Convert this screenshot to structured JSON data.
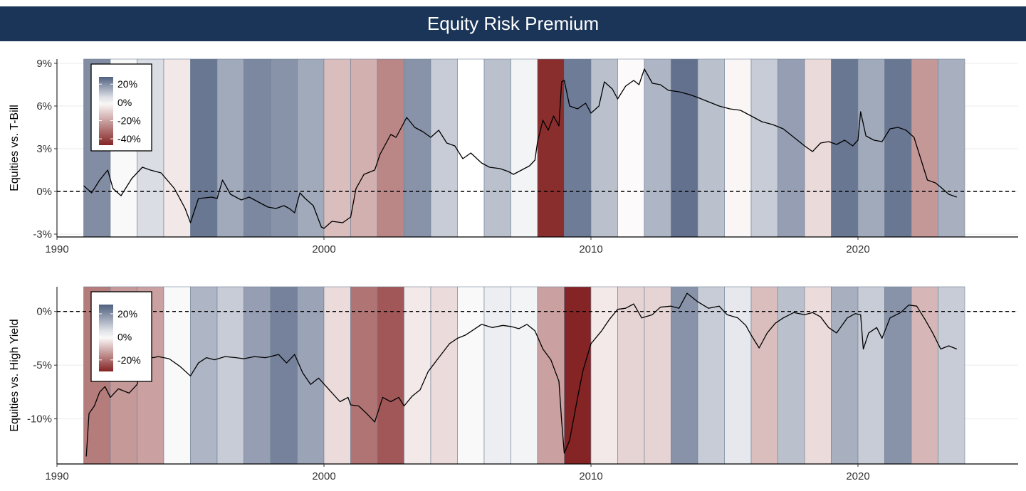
{
  "title": "Equity Risk Premium",
  "chart_data": [
    {
      "type": "line",
      "ylabel": "Equities vs. T-Bill",
      "xlabel": "",
      "xlim": [
        1990,
        2026
      ],
      "ylim": [
        -3.2,
        9.3
      ],
      "x_ticks": [
        1990,
        2000,
        2010,
        2020
      ],
      "y_ticks": [
        {
          "v": 9,
          "label": "9%"
        },
        {
          "v": 6,
          "label": "6%"
        },
        {
          "v": 3,
          "label": "3%"
        },
        {
          "v": 0,
          "label": "0%"
        },
        {
          "v": -3,
          "label": "-3%"
        }
      ],
      "reference_line": 0,
      "legend": {
        "placement": "top-left",
        "labels": [
          "20%",
          "0%",
          "-20%",
          "-40%"
        ],
        "values": [
          20,
          0,
          -20,
          -40
        ],
        "range": [
          -47,
          28
        ]
      },
      "annual_shading": {
        "years": [
          1991,
          1992,
          1993,
          1994,
          1995,
          1996,
          1997,
          1998,
          1999,
          2000,
          2001,
          2002,
          2003,
          2004,
          2005,
          2006,
          2007,
          2008,
          2009,
          2010,
          2011,
          2012,
          2013,
          2014,
          2015,
          2016,
          2017,
          2018,
          2019,
          2020,
          2021,
          2022,
          2023
        ],
        "values": [
          20,
          1,
          6,
          -5,
          24,
          15,
          21,
          19,
          15,
          -14,
          -17,
          -26,
          19,
          9,
          0,
          11,
          2,
          -45,
          23,
          11,
          -1,
          13,
          25,
          11,
          -2,
          9,
          17,
          -8,
          24,
          15,
          24,
          -22,
          14
        ]
      },
      "series": [
        {
          "x": [
            1991.0,
            1991.3,
            1991.6,
            1991.9,
            1992.1,
            1992.4,
            1992.8,
            1993.2,
            1993.5,
            1993.9,
            1994.4,
            1994.8,
            1995.0,
            1995.3,
            1995.8,
            1996.0,
            1996.2,
            1996.5,
            1996.9,
            1997.2,
            1997.6,
            1997.9,
            1998.2,
            1998.5,
            1998.7,
            1998.9,
            1999.1,
            1999.3,
            1999.6,
            1999.9,
            2000.0,
            2000.3,
            2000.7,
            2001.0,
            2001.2,
            2001.5,
            2001.9,
            2002.1,
            2002.5,
            2002.7,
            2002.9,
            2003.1,
            2003.4,
            2003.7,
            2004.0,
            2004.3,
            2004.6,
            2004.9,
            2005.2,
            2005.5,
            2005.9,
            2006.2,
            2006.6,
            2006.9,
            2007.1,
            2007.4,
            2007.7,
            2007.9,
            2008.0,
            2008.2,
            2008.4,
            2008.6,
            2008.8,
            2008.9,
            2009.0,
            2009.2,
            2009.5,
            2009.8,
            2010.0,
            2010.3,
            2010.5,
            2010.8,
            2011.0,
            2011.3,
            2011.6,
            2011.8,
            2012.0,
            2012.3,
            2012.6,
            2012.9,
            2013.3,
            2013.7,
            2014.0,
            2014.4,
            2014.8,
            2015.2,
            2015.6,
            2016.0,
            2016.4,
            2016.8,
            2017.2,
            2017.6,
            2018.0,
            2018.3,
            2018.6,
            2018.9,
            2019.2,
            2019.5,
            2019.8,
            2020.0,
            2020.1,
            2020.3,
            2020.6,
            2020.9,
            2021.2,
            2021.5,
            2021.8,
            2022.1,
            2022.4,
            2022.6,
            2022.9,
            2023.1,
            2023.4,
            2023.7
          ],
          "y": [
            0.4,
            -0.1,
            0.8,
            1.5,
            0.2,
            -0.3,
            0.9,
            1.7,
            1.5,
            1.3,
            0.2,
            -1.2,
            -2.2,
            -0.5,
            -0.4,
            -0.5,
            0.8,
            -0.2,
            -0.6,
            -0.4,
            -0.8,
            -1.1,
            -1.2,
            -1.0,
            -1.2,
            -1.5,
            -0.1,
            -0.5,
            -1.0,
            -2.5,
            -2.6,
            -2.1,
            -2.2,
            -1.8,
            0.2,
            1.2,
            1.5,
            2.6,
            4.0,
            3.8,
            4.5,
            5.2,
            4.5,
            4.2,
            3.8,
            4.3,
            3.4,
            3.2,
            2.3,
            2.7,
            2.0,
            1.7,
            1.6,
            1.4,
            1.2,
            1.5,
            1.8,
            2.2,
            3.5,
            5.0,
            4.3,
            5.3,
            4.6,
            7.7,
            7.8,
            6.0,
            5.8,
            6.2,
            5.5,
            6.0,
            7.7,
            7.2,
            6.5,
            7.4,
            7.8,
            7.5,
            8.6,
            7.6,
            7.5,
            7.1,
            7.0,
            6.8,
            6.6,
            6.3,
            6.0,
            5.8,
            5.7,
            5.3,
            4.9,
            4.7,
            4.4,
            3.8,
            3.2,
            2.8,
            3.4,
            3.5,
            3.3,
            3.6,
            3.2,
            3.6,
            5.6,
            3.9,
            3.6,
            3.5,
            4.4,
            4.5,
            4.3,
            3.8,
            2.0,
            0.8,
            0.6,
            0.3,
            -0.2,
            -0.4
          ]
        }
      ]
    },
    {
      "type": "line",
      "ylabel": "Equities vs. High Yield",
      "xlabel": "",
      "xlim": [
        1990,
        2026
      ],
      "ylim": [
        -14.2,
        2.3
      ],
      "x_ticks": [
        1990,
        2000,
        2010,
        2020
      ],
      "y_ticks": [
        {
          "v": 0,
          "label": "0%"
        },
        {
          "v": -5,
          "label": "-5%"
        },
        {
          "v": -10,
          "label": "-10%"
        }
      ],
      "reference_line": 0,
      "legend": {
        "placement": "top-left",
        "labels": [
          "20%",
          "0%",
          "-20%"
        ],
        "values": [
          20,
          0,
          -20
        ],
        "range": [
          -30,
          28
        ]
      },
      "annual_shading": {
        "years": [
          1991,
          1992,
          1993,
          1994,
          1995,
          1996,
          1997,
          1998,
          1999,
          2000,
          2001,
          2002,
          2003,
          2004,
          2005,
          2006,
          2007,
          2008,
          2009,
          2010,
          2011,
          2012,
          2013,
          2014,
          2015,
          2016,
          2017,
          2018,
          2019,
          2020,
          2021,
          2022,
          2023
        ],
        "values": [
          -18,
          -14,
          -13,
          1,
          13,
          9,
          17,
          22,
          16,
          -5,
          -19,
          -23,
          -3,
          -5,
          1,
          3,
          2,
          -13,
          -30,
          -3,
          -6,
          -6,
          19,
          9,
          4,
          -9,
          11,
          -5,
          14,
          9,
          19,
          -10,
          9
        ]
      },
      "series": [
        {
          "x": [
            1991.1,
            1991.2,
            1991.4,
            1991.6,
            1991.8,
            1992.0,
            1992.3,
            1992.7,
            1993.0,
            1993.2,
            1993.4,
            1993.6,
            1993.8,
            1994.2,
            1994.6,
            1995.0,
            1995.3,
            1995.6,
            1995.9,
            1996.3,
            1996.7,
            1997.0,
            1997.4,
            1997.8,
            1998.0,
            1998.3,
            1998.6,
            1998.9,
            1999.2,
            1999.5,
            1999.8,
            2000.2,
            2000.6,
            2000.9,
            2001.0,
            2001.3,
            2001.6,
            2001.9,
            2002.2,
            2002.5,
            2002.8,
            2003.0,
            2003.3,
            2003.6,
            2003.9,
            2004.3,
            2004.7,
            2005.0,
            2005.3,
            2005.6,
            2005.9,
            2006.3,
            2006.7,
            2007.0,
            2007.3,
            2007.6,
            2007.9,
            2008.2,
            2008.5,
            2008.8,
            2008.9,
            2009.0,
            2009.2,
            2009.5,
            2009.7,
            2010.0,
            2010.4,
            2010.7,
            2011.0,
            2011.3,
            2011.6,
            2011.9,
            2012.3,
            2012.6,
            2013.0,
            2013.3,
            2013.6,
            2014.0,
            2014.4,
            2014.8,
            2015.1,
            2015.5,
            2015.8,
            2016.0,
            2016.3,
            2016.6,
            2016.9,
            2017.2,
            2017.6,
            2018.0,
            2018.3,
            2018.6,
            2018.9,
            2019.2,
            2019.6,
            2019.9,
            2020.1,
            2020.2,
            2020.4,
            2020.7,
            2020.9,
            2021.2,
            2021.6,
            2021.9,
            2022.2,
            2022.5,
            2022.8,
            2023.1,
            2023.4,
            2023.7
          ],
          "y": [
            -13.5,
            -9.5,
            -8.8,
            -7.5,
            -7.0,
            -8.0,
            -7.2,
            -7.6,
            -6.8,
            -5.0,
            -4.2,
            -4.3,
            -4.2,
            -4.4,
            -5.1,
            -6.0,
            -4.8,
            -4.3,
            -4.5,
            -4.2,
            -4.3,
            -4.4,
            -4.2,
            -4.3,
            -4.2,
            -4.0,
            -4.8,
            -4.0,
            -5.7,
            -6.8,
            -6.2,
            -7.3,
            -8.4,
            -8.0,
            -8.7,
            -8.8,
            -9.5,
            -10.3,
            -8.0,
            -8.4,
            -8.0,
            -8.8,
            -7.9,
            -7.3,
            -5.6,
            -4.3,
            -3.0,
            -2.5,
            -2.2,
            -1.7,
            -1.2,
            -1.5,
            -1.3,
            -1.4,
            -1.6,
            -1.2,
            -1.8,
            -3.5,
            -4.5,
            -6.5,
            -10.2,
            -13.2,
            -12.0,
            -8.0,
            -5.5,
            -3.0,
            -1.8,
            -0.7,
            0.2,
            0.3,
            0.7,
            -0.6,
            -0.3,
            0.4,
            0.5,
            0.3,
            1.7,
            0.9,
            0.3,
            0.5,
            -0.3,
            -0.6,
            -1.3,
            -2.2,
            -3.4,
            -2.0,
            -1.1,
            -0.6,
            -0.1,
            -0.3,
            -0.1,
            -0.5,
            -1.5,
            -2.0,
            -0.6,
            -0.2,
            -0.3,
            -3.5,
            -2.0,
            -1.5,
            -2.5,
            -0.6,
            -0.1,
            0.6,
            0.5,
            -0.7,
            -2.0,
            -3.5,
            -3.2,
            -3.5
          ]
        }
      ]
    }
  ]
}
